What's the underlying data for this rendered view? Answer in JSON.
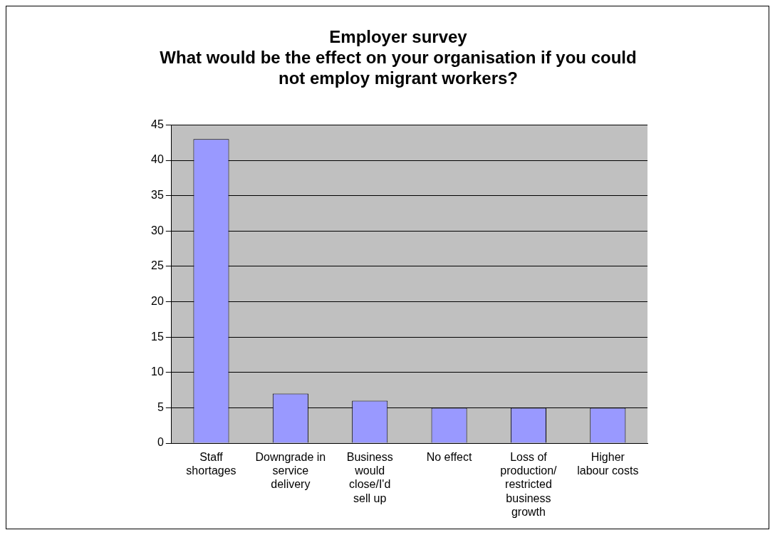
{
  "chart_data": {
    "type": "bar",
    "title": "Employer survey",
    "subtitle": "What would be the effect on your organisation if you could not employ migrant workers?",
    "categories": [
      "Staff shortages",
      "Downgrade in service delivery",
      "Business would close/I'd sell up",
      "No effect",
      "Loss of production/ restricted business growth",
      "Higher labour costs"
    ],
    "values": [
      43,
      7,
      6,
      5,
      5,
      5
    ],
    "color": "#9999ff",
    "ylim": [
      0,
      45
    ],
    "yticks": [
      0,
      5,
      10,
      15,
      20,
      25,
      30,
      35,
      40,
      45
    ],
    "grid": "y",
    "legend": false
  }
}
